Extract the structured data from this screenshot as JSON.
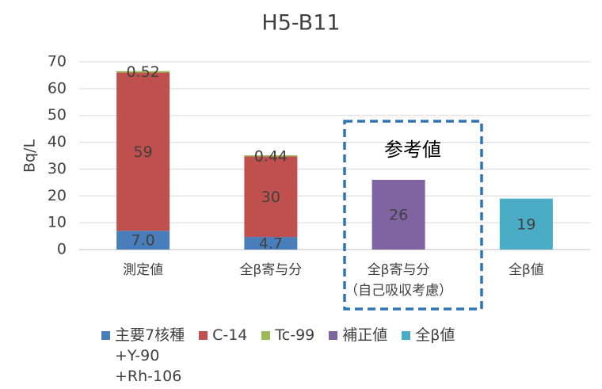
{
  "chart_data": {
    "type": "stacked_bar",
    "title": "H5-B11",
    "y_label": "Bq/L",
    "categories": [
      "測定値",
      "全β寄与分",
      "全β寄与分\n（自己吸収考慮）",
      "全β値"
    ],
    "series": [
      {
        "name": "主要7核種\n+Y-90\n+Rh-106",
        "color": "#4a7ebb",
        "values": [
          7.0,
          4.7,
          null,
          null
        ],
        "value_labels": [
          "7.0",
          "4.7",
          null,
          null
        ]
      },
      {
        "name": "C-14",
        "color": "#c0504d",
        "values": [
          59,
          30,
          null,
          null
        ]
      },
      {
        "name": "Tc-99",
        "color": "#9bbb59",
        "values": [
          0.52,
          0.44,
          null,
          null
        ]
      },
      {
        "name": "補正値",
        "color": "#8064a2",
        "values": [
          null,
          null,
          26,
          null
        ]
      },
      {
        "name": "全β値",
        "color": "#4bacc6",
        "values": [
          null,
          null,
          null,
          19
        ]
      }
    ],
    "annotation": "参考値",
    "ylim": [
      0,
      70
    ],
    "yticks": [
      0,
      10,
      20,
      30,
      40,
      50,
      60,
      70
    ],
    "grid": true,
    "legend": "bottom"
  }
}
